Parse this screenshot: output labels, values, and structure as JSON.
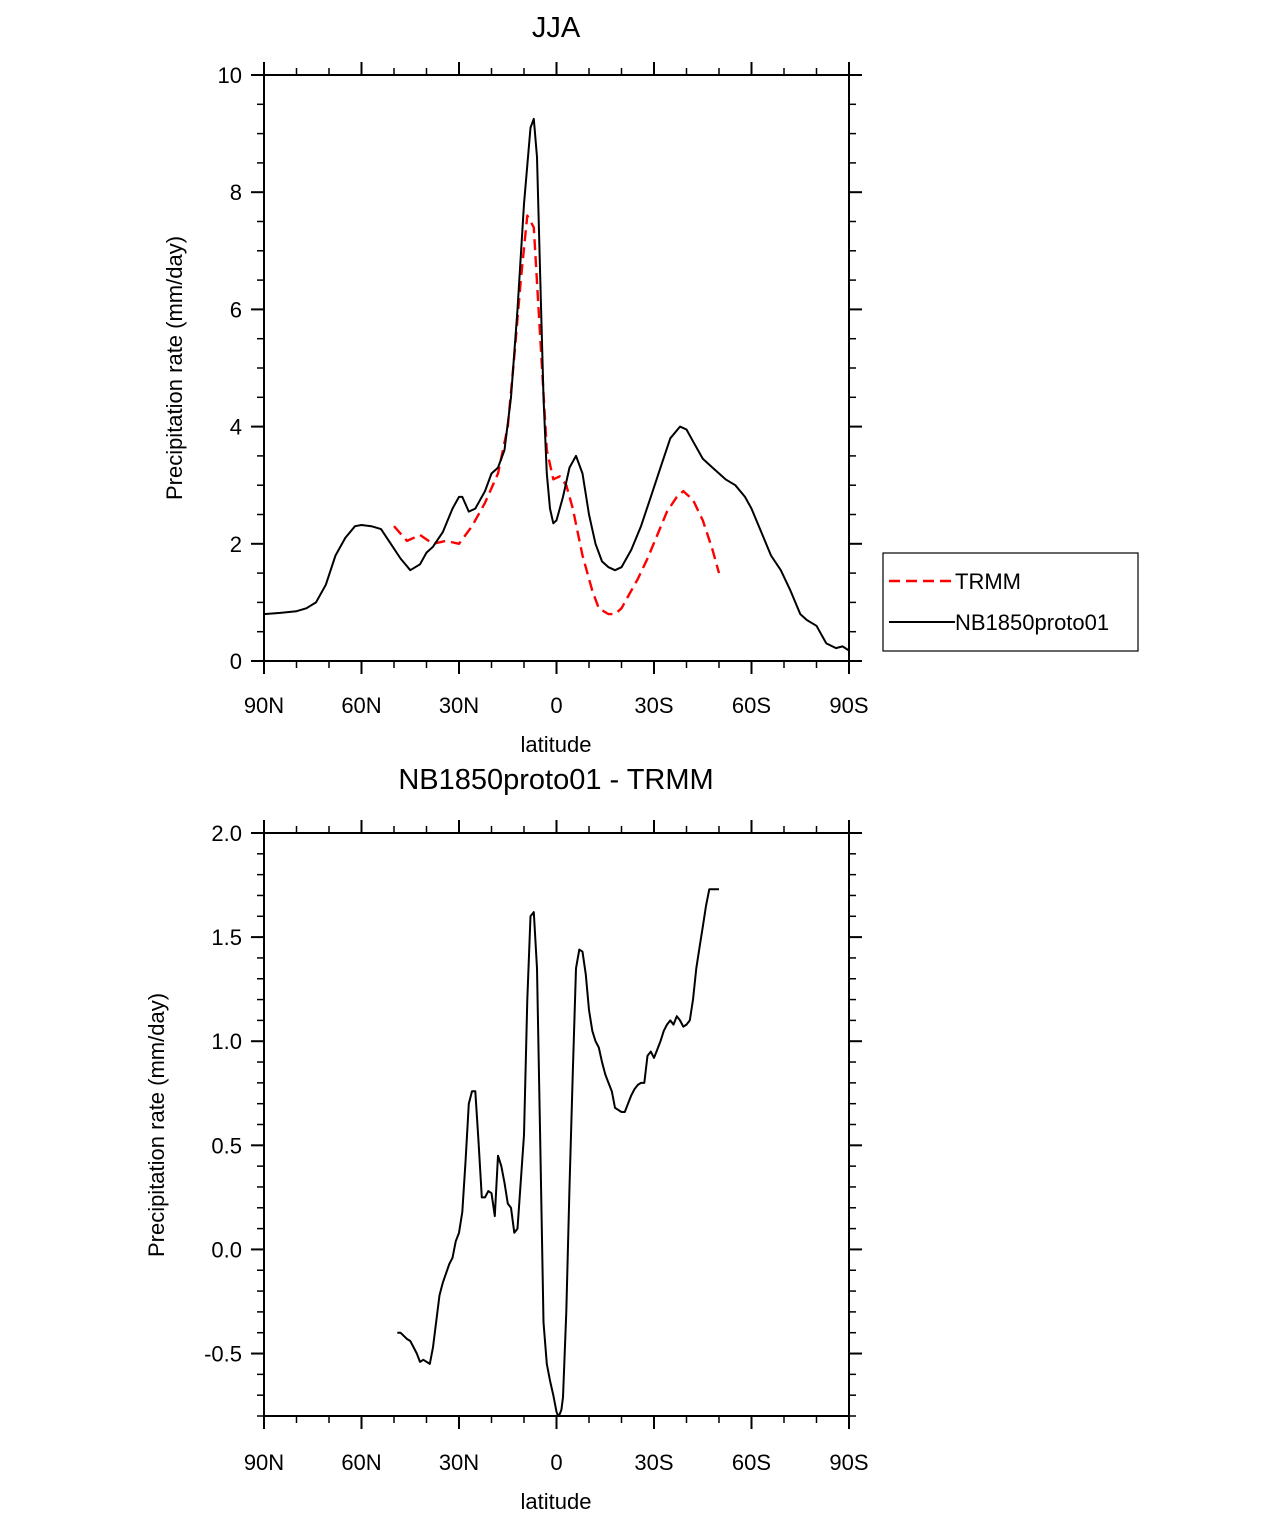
{
  "chart_data": [
    {
      "type": "line",
      "title": "JJA",
      "xlabel": "latitude",
      "ylabel": "Precipitation rate (mm/day)",
      "xlim": [
        90,
        -90
      ],
      "ylim": [
        0,
        10
      ],
      "xticks": [
        {
          "value": 90,
          "label": "90N"
        },
        {
          "value": 60,
          "label": "60N"
        },
        {
          "value": 30,
          "label": "30N"
        },
        {
          "value": 0,
          "label": "0"
        },
        {
          "value": -30,
          "label": "30S"
        },
        {
          "value": -60,
          "label": "60S"
        },
        {
          "value": -90,
          "label": "90S"
        }
      ],
      "yticks": [
        {
          "value": 0,
          "label": "0"
        },
        {
          "value": 2,
          "label": "2"
        },
        {
          "value": 4,
          "label": "4"
        },
        {
          "value": 6,
          "label": "6"
        },
        {
          "value": 8,
          "label": "8"
        },
        {
          "value": 10,
          "label": "10"
        }
      ],
      "legend_position": "right",
      "series": [
        {
          "name": "TRMM",
          "color": "#ff0000",
          "dash": "dashed",
          "x": [
            50,
            46,
            42,
            38,
            34,
            30,
            26,
            22,
            18,
            15,
            13,
            11,
            9,
            7,
            5,
            3,
            1,
            -1,
            -3,
            -5,
            -8,
            -11,
            -13,
            -16,
            -18,
            -20,
            -22,
            -25,
            -28,
            -31,
            -34,
            -37,
            -39,
            -42,
            -45,
            -48,
            -50
          ],
          "y": [
            2.3,
            2.05,
            2.15,
            2.0,
            2.05,
            2.0,
            2.3,
            2.7,
            3.2,
            4.0,
            5.2,
            6.5,
            7.6,
            7.4,
            5.5,
            3.6,
            3.1,
            3.15,
            3.0,
            2.6,
            1.8,
            1.2,
            0.9,
            0.8,
            0.8,
            0.9,
            1.1,
            1.4,
            1.75,
            2.15,
            2.55,
            2.8,
            2.9,
            2.75,
            2.4,
            1.9,
            1.5
          ]
        },
        {
          "name": "NB1850proto01",
          "color": "#000000",
          "dash": "solid",
          "x": [
            90,
            85,
            80,
            77,
            74,
            71,
            68,
            65,
            62,
            60,
            57,
            54,
            51,
            48,
            45,
            42,
            40,
            38,
            35,
            32,
            30,
            29,
            27,
            25,
            22,
            20,
            18,
            16,
            14,
            12,
            10,
            8,
            7,
            6,
            5,
            4,
            3,
            2,
            1,
            0,
            -2,
            -4,
            -6,
            -8,
            -10,
            -12,
            -14,
            -16,
            -18,
            -20,
            -23,
            -26,
            -29,
            -32,
            -35,
            -38,
            -40,
            -42,
            -45,
            -48,
            -52,
            -55,
            -58,
            -60,
            -63,
            -66,
            -69,
            -72,
            -75,
            -77,
            -80,
            -83,
            -86,
            -88,
            -90
          ],
          "y": [
            0.8,
            0.82,
            0.85,
            0.9,
            1.0,
            1.3,
            1.8,
            2.1,
            2.3,
            2.32,
            2.3,
            2.25,
            2.0,
            1.75,
            1.55,
            1.65,
            1.85,
            1.95,
            2.2,
            2.6,
            2.8,
            2.8,
            2.55,
            2.6,
            2.9,
            3.2,
            3.3,
            3.6,
            4.5,
            6.0,
            7.8,
            9.1,
            9.25,
            8.6,
            6.5,
            4.5,
            3.2,
            2.6,
            2.35,
            2.4,
            2.8,
            3.3,
            3.5,
            3.2,
            2.5,
            2.0,
            1.7,
            1.6,
            1.55,
            1.6,
            1.9,
            2.3,
            2.8,
            3.3,
            3.8,
            4.0,
            3.95,
            3.75,
            3.45,
            3.3,
            3.1,
            3.0,
            2.8,
            2.6,
            2.2,
            1.8,
            1.55,
            1.2,
            0.8,
            0.7,
            0.6,
            0.3,
            0.22,
            0.25,
            0.18
          ]
        }
      ]
    },
    {
      "type": "line",
      "title": "NB1850proto01 - TRMM",
      "xlabel": "latitude",
      "ylabel": "Precipitation rate (mm/day)",
      "xlim": [
        90,
        -90
      ],
      "ylim": [
        -0.8,
        2.0
      ],
      "xticks": [
        {
          "value": 90,
          "label": "90N"
        },
        {
          "value": 60,
          "label": "60N"
        },
        {
          "value": 30,
          "label": "30N"
        },
        {
          "value": 0,
          "label": "0"
        },
        {
          "value": -30,
          "label": "30S"
        },
        {
          "value": -60,
          "label": "60S"
        },
        {
          "value": -90,
          "label": "90S"
        }
      ],
      "yticks": [
        {
          "value": -0.5,
          "label": "-0.5"
        },
        {
          "value": 0.0,
          "label": "0.0"
        },
        {
          "value": 0.5,
          "label": "0.5"
        },
        {
          "value": 1.0,
          "label": "1.0"
        },
        {
          "value": 1.5,
          "label": "1.5"
        },
        {
          "value": 2.0,
          "label": "2.0"
        }
      ],
      "series": [
        {
          "name": "NB1850proto01 - TRMM",
          "color": "#000000",
          "dash": "solid",
          "x": [
            49,
            48,
            46,
            45,
            43,
            42,
            41,
            39,
            38,
            36,
            35,
            33,
            32,
            31,
            30,
            29,
            28,
            27,
            26,
            25,
            24,
            23,
            22,
            21,
            20,
            19,
            18,
            17,
            16,
            15,
            14,
            13,
            12,
            10,
            9,
            8,
            7,
            6,
            5,
            4,
            3,
            2,
            1,
            0,
            -0.5,
            -1,
            -1.5,
            -2,
            -3,
            -4,
            -5,
            -6,
            -7,
            -8,
            -9,
            -10,
            -11,
            -12,
            -13,
            -14,
            -15,
            -16,
            -17,
            -18,
            -20,
            -21,
            -22,
            -23,
            -24,
            -25,
            -26,
            -27,
            -28,
            -29,
            -30,
            -31,
            -32,
            -33,
            -34,
            -35,
            -36,
            -37,
            -38,
            -39,
            -40,
            -41,
            -42,
            -43,
            -44,
            -45,
            -46,
            -47,
            -48,
            -49,
            -50
          ],
          "y": [
            -0.4,
            -0.4,
            -0.43,
            -0.44,
            -0.5,
            -0.54,
            -0.53,
            -0.55,
            -0.47,
            -0.22,
            -0.16,
            -0.07,
            -0.04,
            0.04,
            0.08,
            0.18,
            0.42,
            0.7,
            0.76,
            0.76,
            0.52,
            0.25,
            0.25,
            0.28,
            0.27,
            0.16,
            0.45,
            0.4,
            0.32,
            0.22,
            0.2,
            0.08,
            0.1,
            0.55,
            1.2,
            1.6,
            1.62,
            1.35,
            0.5,
            -0.35,
            -0.55,
            -0.63,
            -0.7,
            -0.78,
            -0.8,
            -0.79,
            -0.77,
            -0.71,
            -0.3,
            0.3,
            0.85,
            1.35,
            1.44,
            1.43,
            1.32,
            1.15,
            1.05,
            1.0,
            0.97,
            0.9,
            0.84,
            0.8,
            0.76,
            0.68,
            0.66,
            0.66,
            0.7,
            0.74,
            0.77,
            0.79,
            0.8,
            0.8,
            0.93,
            0.95,
            0.92,
            0.96,
            1.0,
            1.05,
            1.08,
            1.1,
            1.08,
            1.12,
            1.1,
            1.07,
            1.08,
            1.1,
            1.2,
            1.35,
            1.45,
            1.55,
            1.65,
            1.73,
            1.73,
            1.73,
            1.73
          ]
        }
      ]
    }
  ]
}
